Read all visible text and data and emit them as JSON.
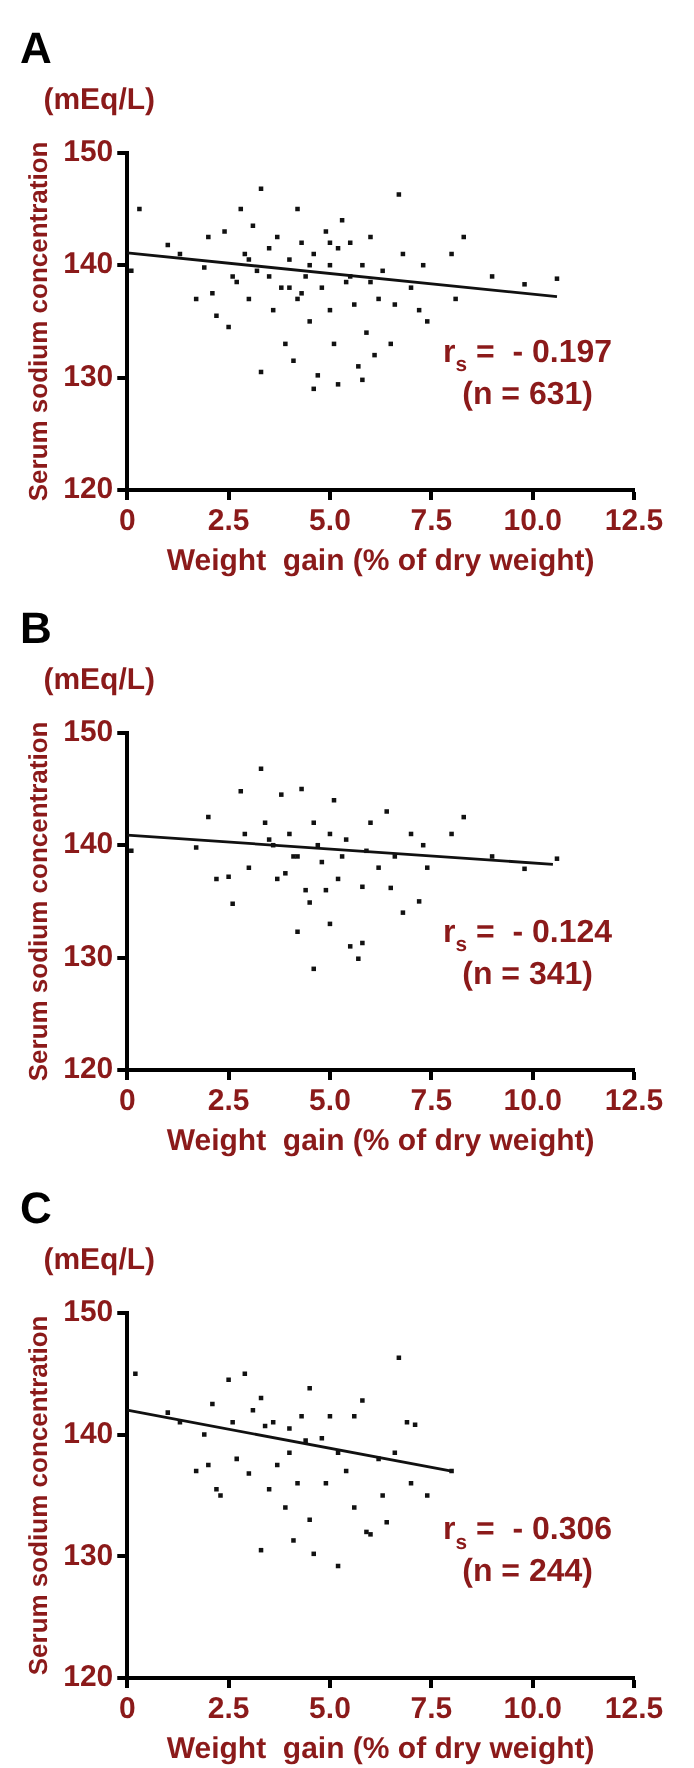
{
  "chart_data": [
    {
      "type": "scatter",
      "title": "A",
      "xlabel": "Weight  gain (% of dry weight)",
      "ylabel": "Serum sodium concentration",
      "annotations": [
        "(mEq/L)",
        "r$_{s}$ =  - 0.197",
        "(n = 631)"
      ],
      "xlim": [
        0,
        12.5
      ],
      "xticks": [
        0,
        2.5,
        {
          "value": 5,
          "label": "5.0"
        },
        {
          "value": 7.5,
          "label": "7.5"
        },
        {
          "value": 10,
          "label": "10.0"
        },
        12.5
      ],
      "ylim": [
        120,
        150
      ],
      "yticks": [
        120,
        130,
        140,
        150
      ],
      "grid": false,
      "legend": false,
      "marker": "square",
      "series": [
        {
          "type": "scatter",
          "color": "#111111",
          "x": [
            0.1,
            0.3,
            1.0,
            1.3,
            1.7,
            1.9,
            2.0,
            2.1,
            2.2,
            2.4,
            2.5,
            2.6,
            2.8,
            2.9,
            3.0,
            3.1,
            3.2,
            3.3,
            3.3,
            3.5,
            3.6,
            3.7,
            3.8,
            3.9,
            4.0,
            4.1,
            4.2,
            4.2,
            4.3,
            4.4,
            4.5,
            4.6,
            4.6,
            4.7,
            4.8,
            4.9,
            5.0,
            5.0,
            5.1,
            5.2,
            5.2,
            5.3,
            5.4,
            5.5,
            5.6,
            5.7,
            5.8,
            5.8,
            5.9,
            6.0,
            6.1,
            6.2,
            6.3,
            6.5,
            6.6,
            6.7,
            6.8,
            7.0,
            7.2,
            7.4,
            7.3,
            8.0,
            8.1,
            8.3,
            9.0,
            9.8,
            10.6,
            3.5,
            4.0,
            4.5,
            5.5,
            6.0,
            3.0,
            2.7,
            5.0,
            4.3
          ],
          "values": [
            139.5,
            145,
            141.8,
            141,
            137,
            139.8,
            142.5,
            137.5,
            135.5,
            143,
            134.5,
            139,
            145,
            141,
            137,
            143.5,
            139.5,
            146.8,
            130.5,
            141.5,
            136,
            142.5,
            138,
            133,
            140.5,
            131.5,
            145,
            137,
            142,
            139,
            135,
            129,
            141,
            130.2,
            138,
            143,
            140,
            136,
            133,
            129.4,
            141.5,
            144,
            138.5,
            142,
            136.5,
            131,
            129.8,
            140,
            134,
            142.5,
            132,
            137,
            139.5,
            133,
            136.5,
            146.3,
            141,
            138,
            136,
            135,
            140,
            141,
            137,
            142.5,
            139,
            138.3,
            138.8,
            139,
            138,
            140,
            139,
            138.5,
            140.5,
            138.5,
            142,
            137.5
          ]
        },
        {
          "type": "line",
          "color": "#111111",
          "marker": "none",
          "x": [
            0,
            10.6
          ],
          "values": [
            141.1,
            137.2
          ]
        }
      ]
    },
    {
      "type": "scatter",
      "title": "B",
      "xlabel": "Weight  gain (% of dry weight)",
      "ylabel": "Serum sodium concentration",
      "annotations": [
        "(mEq/L)",
        "r$_{s}$ =  - 0.124",
        "(n = 341)"
      ],
      "xlim": [
        0,
        12.5
      ],
      "xticks": [
        0,
        2.5,
        {
          "value": 5,
          "label": "5.0"
        },
        {
          "value": 7.5,
          "label": "7.5"
        },
        {
          "value": 10,
          "label": "10.0"
        },
        12.5
      ],
      "ylim": [
        120,
        150
      ],
      "yticks": [
        120,
        130,
        140,
        150
      ],
      "grid": false,
      "legend": false,
      "marker": "square",
      "series": [
        {
          "type": "scatter",
          "color": "#111111",
          "x": [
            0.1,
            1.7,
            2.0,
            2.2,
            2.5,
            2.6,
            2.8,
            2.9,
            3.0,
            3.3,
            3.4,
            3.6,
            3.7,
            3.8,
            4.0,
            4.1,
            4.2,
            4.3,
            4.4,
            4.5,
            4.6,
            4.6,
            4.8,
            5.0,
            5.0,
            5.1,
            5.2,
            5.4,
            5.5,
            5.7,
            5.8,
            5.8,
            6.0,
            6.2,
            6.4,
            6.5,
            6.8,
            7.0,
            7.2,
            7.3,
            7.4,
            8.0,
            8.3,
            9.0,
            9.8,
            10.6,
            3.5,
            4.2,
            4.7,
            5.3,
            5.9,
            6.6,
            3.9,
            4.9
          ],
          "values": [
            139.5,
            139.8,
            142.5,
            137,
            137.2,
            134.8,
            144.8,
            141,
            138,
            146.8,
            142,
            140,
            137,
            144.5,
            141,
            139,
            132.3,
            145,
            136,
            134.9,
            129,
            142,
            138.5,
            141,
            133,
            144,
            137,
            140.5,
            131,
            129.9,
            131.3,
            136.3,
            142,
            138,
            143,
            136.2,
            134,
            141,
            135,
            140,
            138,
            141,
            142.5,
            139,
            137.9,
            138.8,
            140.5,
            139,
            140,
            139,
            139.5,
            139,
            137.5,
            136
          ]
        },
        {
          "type": "line",
          "color": "#111111",
          "marker": "none",
          "x": [
            0,
            10.5
          ],
          "values": [
            140.9,
            138.3
          ]
        }
      ]
    },
    {
      "type": "scatter",
      "title": "C",
      "xlabel": "Weight  gain (% of dry weight)",
      "ylabel": "Serum sodium concentration",
      "annotations": [
        "(mEq/L)",
        "r$_{s}$ =  - 0.306",
        "(n = 244)"
      ],
      "xlim": [
        0,
        12.5
      ],
      "xticks": [
        0,
        2.5,
        {
          "value": 5,
          "label": "5.0"
        },
        {
          "value": 7.5,
          "label": "7.5"
        },
        {
          "value": 10,
          "label": "10.0"
        },
        12.5
      ],
      "ylim": [
        120,
        150
      ],
      "yticks": [
        120,
        130,
        140,
        150
      ],
      "grid": false,
      "legend": false,
      "marker": "square",
      "series": [
        {
          "type": "scatter",
          "color": "#111111",
          "x": [
            0.2,
            1.0,
            1.3,
            1.7,
            1.9,
            2.0,
            2.1,
            2.2,
            2.3,
            2.5,
            2.6,
            2.7,
            2.9,
            3.0,
            3.1,
            3.3,
            3.3,
            3.5,
            3.6,
            3.7,
            3.9,
            4.0,
            4.1,
            4.2,
            4.3,
            4.5,
            4.5,
            4.6,
            4.8,
            4.9,
            5.0,
            5.2,
            5.2,
            5.4,
            5.6,
            5.6,
            5.8,
            5.9,
            6.0,
            6.2,
            6.3,
            6.4,
            6.6,
            6.7,
            6.9,
            7.1,
            7.0,
            7.4,
            8.0,
            3.4,
            4.0,
            4.4
          ],
          "values": [
            145,
            141.8,
            141,
            137,
            140,
            137.5,
            142.5,
            135.5,
            135,
            144.5,
            141,
            138,
            145,
            136.8,
            142,
            130.5,
            143,
            135.5,
            141,
            137.5,
            134,
            140.5,
            131.3,
            136,
            141.5,
            143.8,
            133,
            130.2,
            139.7,
            136,
            141.5,
            129.2,
            138.5,
            137,
            141.5,
            134,
            142.8,
            132,
            131.8,
            138,
            135,
            132.8,
            138.5,
            146.3,
            141,
            140.8,
            136,
            135,
            137,
            140.7,
            138.5,
            139.5
          ]
        },
        {
          "type": "line",
          "color": "#111111",
          "marker": "none",
          "x": [
            0,
            8.0
          ],
          "values": [
            142.0,
            137.0
          ]
        }
      ]
    }
  ]
}
